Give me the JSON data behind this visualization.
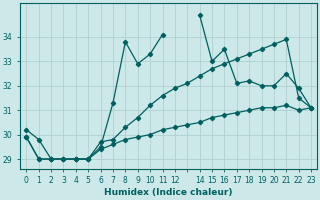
{
  "xlabel": "Humidex (Indice chaleur)",
  "background_color": "#cce8e8",
  "grid_color": "#b0d0d0",
  "line_color": "#006060",
  "xlim": [
    -0.5,
    23.5
  ],
  "ylim": [
    28.6,
    35.4
  ],
  "yticks": [
    29,
    30,
    31,
    32,
    33,
    34
  ],
  "xtick_labels": [
    "0",
    "1",
    "2",
    "3",
    "4",
    "5",
    "6",
    "7",
    "8",
    "9",
    "1011",
    "12",
    "",
    "1415",
    "16",
    "17",
    "18",
    "19",
    "20",
    "21",
    "2223"
  ],
  "series": [
    [
      30.2,
      29.8,
      29.0,
      29.0,
      29.0,
      29.0,
      29.5,
      31.3,
      33.8,
      32.9,
      33.3,
      34.1,
      null,
      null,
      34.9,
      33.0,
      33.5,
      32.1,
      32.2,
      32.0,
      32.0,
      32.5,
      31.9,
      31.1
    ],
    [
      29.9,
      29.0,
      29.0,
      29.0,
      29.0,
      29.0,
      29.7,
      29.8,
      30.3,
      30.7,
      31.2,
      31.6,
      31.9,
      32.1,
      32.4,
      32.7,
      32.9,
      33.1,
      33.3,
      33.5,
      33.7,
      33.9,
      31.5,
      31.1
    ],
    [
      29.9,
      29.0,
      29.0,
      29.0,
      29.0,
      29.0,
      29.4,
      29.6,
      29.8,
      29.9,
      30.0,
      30.2,
      30.3,
      30.4,
      30.5,
      30.7,
      30.8,
      30.9,
      31.0,
      31.1,
      31.1,
      31.2,
      31.0,
      31.1
    ]
  ]
}
